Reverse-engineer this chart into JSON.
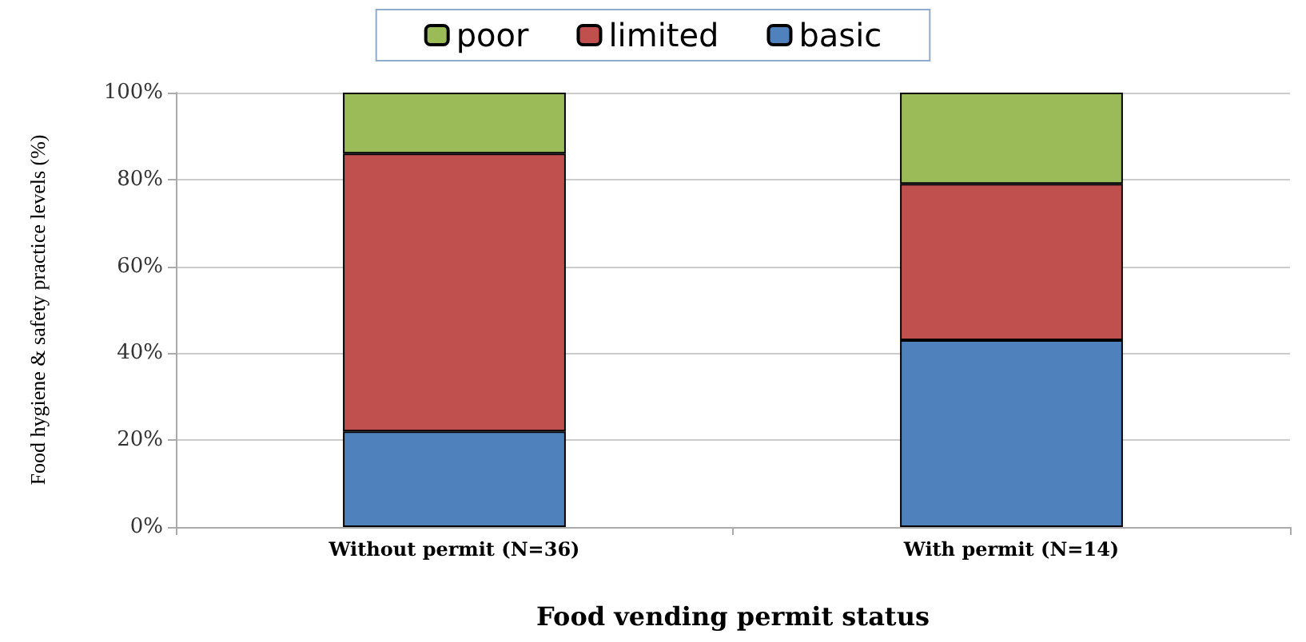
{
  "chart_data": {
    "type": "bar",
    "stacked": true,
    "xlabel": "Food vending permit status",
    "ylabel": "Food hygiene & safety practice levels (%)",
    "categories": [
      "Without permit (N=36)",
      "With permit (N=14)"
    ],
    "series": [
      {
        "name": "basic",
        "color": "#4f81bd",
        "values": [
          22,
          43
        ]
      },
      {
        "name": "limited",
        "color": "#c0504d",
        "values": [
          64,
          36
        ]
      },
      {
        "name": "poor",
        "color": "#9bbb59",
        "values": [
          14,
          21
        ]
      }
    ],
    "ylim": [
      0,
      100
    ],
    "yticks": [
      {
        "value": 0,
        "label": "0%"
      },
      {
        "value": 20,
        "label": "20%"
      },
      {
        "value": 40,
        "label": "40%"
      },
      {
        "value": 60,
        "label": "60%"
      },
      {
        "value": 80,
        "label": "80%"
      },
      {
        "value": 100,
        "label": "100%"
      }
    ],
    "grid": "y",
    "legend": "top"
  }
}
